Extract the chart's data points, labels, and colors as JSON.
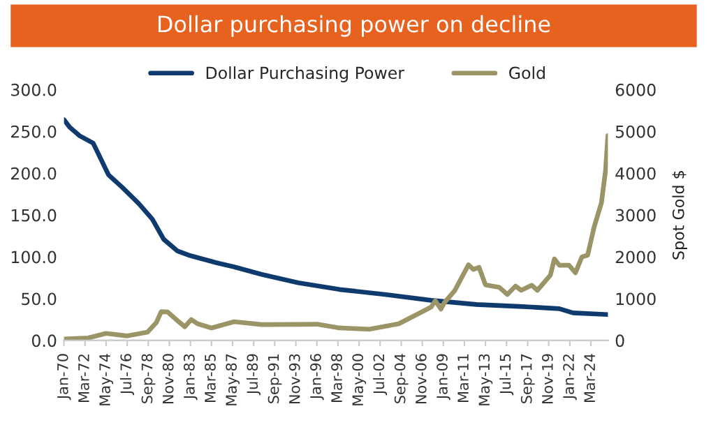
{
  "chart_data": {
    "type": "line",
    "title": "Dollar purchasing power on decline",
    "y2label": "Spot Gold $",
    "series": [
      {
        "name": "Dollar Purchasing Power",
        "color": "#0f3a6e",
        "x": [
          "1970-01",
          "1970-08",
          "1971-08",
          "1973-01",
          "1974-08",
          "1976-01",
          "1977-09",
          "1979-02",
          "1980-04",
          "1981-09",
          "1982-11",
          "1985-09",
          "1987-07",
          "1990-05",
          "1994-02",
          "1998-05",
          "2003-01",
          "2007-10",
          "2012-06",
          "2017-03",
          "2020-12",
          "2022-05",
          "2025-12"
        ],
        "values": [
          264,
          255,
          245,
          236,
          198,
          183,
          164,
          145,
          121,
          107,
          102,
          93,
          88,
          79,
          69,
          61,
          55,
          48,
          43,
          40.5,
          38,
          33,
          31
        ]
      },
      {
        "name": "Gold",
        "color": "#9a9466",
        "axis": "y2",
        "x": [
          "1970-01",
          "1972-07",
          "1974-05",
          "1976-07",
          "1978-08",
          "1979-07",
          "1980-01",
          "1980-09",
          "1981-09",
          "1982-06",
          "1983-02",
          "1983-10",
          "1985-03",
          "1987-07",
          "1990-05",
          "1994-02",
          "1996-01",
          "1998-05",
          "2000-04",
          "2001-06",
          "2002-02",
          "2004-06",
          "2006-05",
          "2007-10",
          "2008-03",
          "2008-10",
          "2009-02",
          "2010-03",
          "2011-08",
          "2012-02",
          "2012-09",
          "2013-05",
          "2014-10",
          "2015-08",
          "2016-06",
          "2017-01",
          "2018-02",
          "2018-09",
          "2020-01",
          "2020-06",
          "2020-12",
          "2021-12",
          "2022-08",
          "2023-04",
          "2023-11",
          "2024-07",
          "2025-04",
          "2025-09",
          "2025-12"
        ],
        "values": [
          35,
          60,
          170,
          110,
          200,
          430,
          690,
          680,
          475,
          330,
          500,
          400,
          300,
          450,
          380,
          385,
          390,
          300,
          280,
          270,
          300,
          400,
          630,
          800,
          950,
          750,
          900,
          1190,
          1810,
          1700,
          1750,
          1330,
          1270,
          1100,
          1300,
          1200,
          1320,
          1200,
          1560,
          1950,
          1800,
          1800,
          1620,
          2000,
          2040,
          2710,
          3290,
          4050,
          4900
        ]
      }
    ],
    "xlim": [
      "1970-01",
      "2025-12"
    ],
    "xticks": [
      {
        "value": "1970-01",
        "label": "Jan-70"
      },
      {
        "value": "1972-03",
        "label": "Mar-72"
      },
      {
        "value": "1974-05",
        "label": "May-74"
      },
      {
        "value": "1976-07",
        "label": "Jul-76"
      },
      {
        "value": "1978-09",
        "label": "Sep-78"
      },
      {
        "value": "1980-11",
        "label": "Nov-80"
      },
      {
        "value": "1983-01",
        "label": "Jan-83"
      },
      {
        "value": "1985-03",
        "label": "Mar-85"
      },
      {
        "value": "1987-05",
        "label": "May-87"
      },
      {
        "value": "1989-07",
        "label": "Jul-89"
      },
      {
        "value": "1991-09",
        "label": "Sep-91"
      },
      {
        "value": "1993-11",
        "label": "Nov-93"
      },
      {
        "value": "1996-01",
        "label": "Jan-96"
      },
      {
        "value": "1998-03",
        "label": "Mar-98"
      },
      {
        "value": "2000-05",
        "label": "May-00"
      },
      {
        "value": "2002-07",
        "label": "Jul-02"
      },
      {
        "value": "2004-09",
        "label": "Sep-04"
      },
      {
        "value": "2006-11",
        "label": "Nov-06"
      },
      {
        "value": "2009-01",
        "label": "Jan-09"
      },
      {
        "value": "2011-03",
        "label": "Mar-11"
      },
      {
        "value": "2013-05",
        "label": "May-13"
      },
      {
        "value": "2015-07",
        "label": "Jul-15"
      },
      {
        "value": "2017-09",
        "label": "Sep-17"
      },
      {
        "value": "2019-11",
        "label": "Nov-19"
      },
      {
        "value": "2022-01",
        "label": "Jan-22"
      },
      {
        "value": "2024-03",
        "label": "Mar-24"
      }
    ],
    "ylim": [
      0,
      300
    ],
    "yticks": [
      {
        "value": 0,
        "label": "0.0"
      },
      {
        "value": 50,
        "label": "50.0"
      },
      {
        "value": 100,
        "label": "100.0"
      },
      {
        "value": 150,
        "label": "150.0"
      },
      {
        "value": 200,
        "label": "200.0"
      },
      {
        "value": 250,
        "label": "250.0"
      },
      {
        "value": 300,
        "label": "300.0"
      }
    ],
    "y2lim": [
      0,
      6000
    ],
    "y2ticks": [
      0,
      1000,
      2000,
      3000,
      4000,
      5000,
      6000
    ],
    "legend": "top",
    "grid": false,
    "marker": "none",
    "line_style": "solid"
  }
}
